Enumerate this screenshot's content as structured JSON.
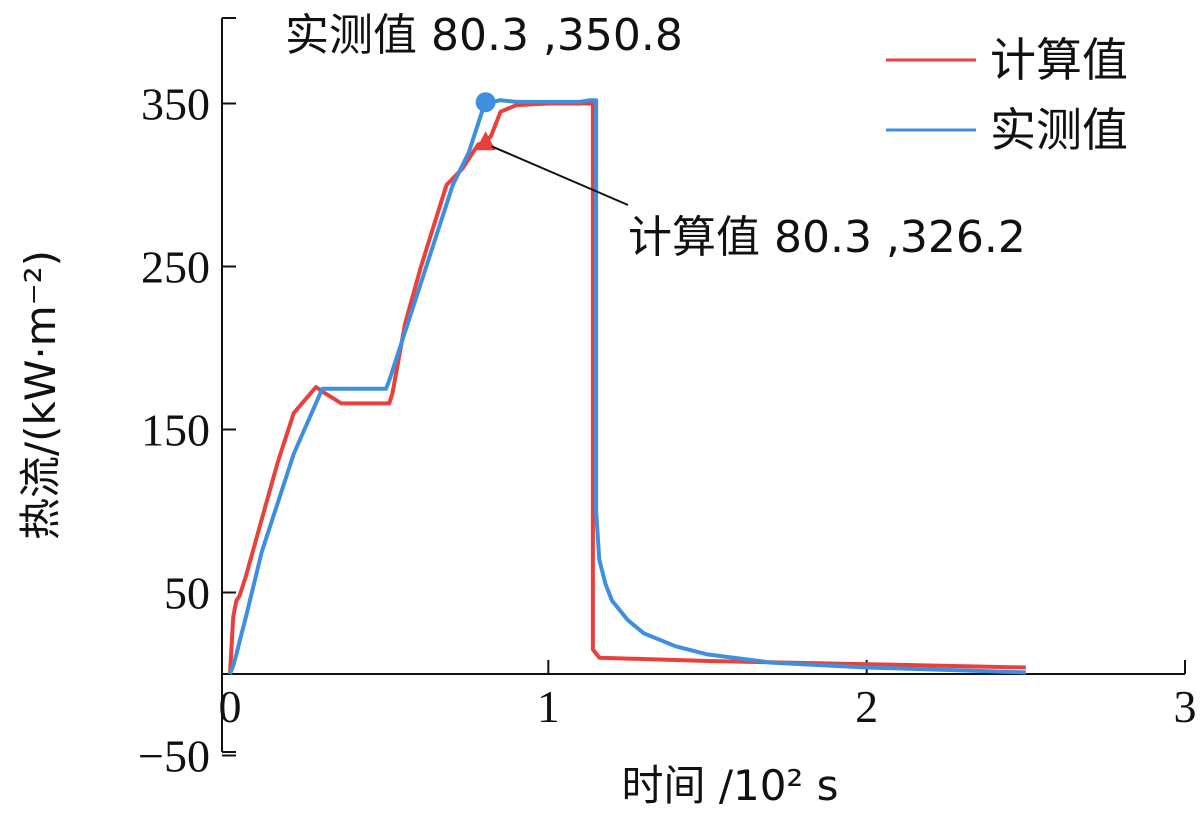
{
  "chart_data": {
    "type": "line",
    "xlabel": "时间 /10² s",
    "ylabel": "热流/(kW·m⁻²)",
    "xlim": [
      -0.02,
      3
    ],
    "ylim": [
      -50,
      400
    ],
    "x_ticks": [
      "0",
      "1",
      "2",
      "3"
    ],
    "y_ticks": [
      "−50",
      "50",
      "150",
      "250",
      "350"
    ],
    "y_tick_values": [
      -50,
      50,
      150,
      250,
      350
    ],
    "x_tick_values": [
      0,
      1,
      2,
      3
    ],
    "legend_position": "top-right",
    "series": [
      {
        "name": "计算值",
        "color": "#e8413c",
        "x": [
          0.0,
          0.01,
          0.02,
          0.03,
          0.05,
          0.1,
          0.15,
          0.2,
          0.27,
          0.3,
          0.35,
          0.4,
          0.5,
          0.51,
          0.55,
          0.6,
          0.68,
          0.73,
          0.78,
          0.8,
          0.82,
          0.85,
          0.9,
          1.0,
          1.05,
          1.1,
          1.13,
          1.14,
          1.14,
          1.16,
          1.5,
          2.0,
          2.5
        ],
        "y": [
          0,
          35,
          45,
          48,
          60,
          95,
          130,
          160,
          176,
          172,
          166,
          166,
          166,
          172,
          215,
          250,
          300,
          310,
          325,
          326,
          330,
          345,
          349,
          350,
          350,
          350,
          350,
          350,
          15,
          10,
          8,
          6,
          4
        ]
      },
      {
        "name": "实测值",
        "color": "#3f8fe0",
        "x": [
          0.0,
          0.01,
          0.02,
          0.03,
          0.05,
          0.1,
          0.2,
          0.29,
          0.3,
          0.4,
          0.49,
          0.5,
          0.6,
          0.7,
          0.75,
          0.8,
          0.85,
          0.9,
          1.0,
          1.05,
          1.1,
          1.13,
          1.15,
          1.15,
          1.16,
          1.18,
          1.2,
          1.25,
          1.3,
          1.4,
          1.5,
          1.7,
          2.0,
          2.5
        ],
        "y": [
          0,
          5,
          12,
          20,
          35,
          75,
          135,
          175,
          175,
          175,
          175,
          180,
          240,
          300,
          320,
          350,
          352,
          351,
          351,
          351,
          351,
          352,
          352,
          100,
          70,
          55,
          45,
          33,
          25,
          17,
          12,
          7,
          4,
          1
        ]
      }
    ],
    "annotations": [
      {
        "series": "实测值",
        "x": 80.3,
        "y": 350.8,
        "label": "实测值 80.3 ,350.8",
        "marker": "circle"
      },
      {
        "series": "计算值",
        "x": 80.3,
        "y": 326.2,
        "label": "计算值 80.3 ,326.2",
        "marker": "triangle"
      }
    ]
  }
}
